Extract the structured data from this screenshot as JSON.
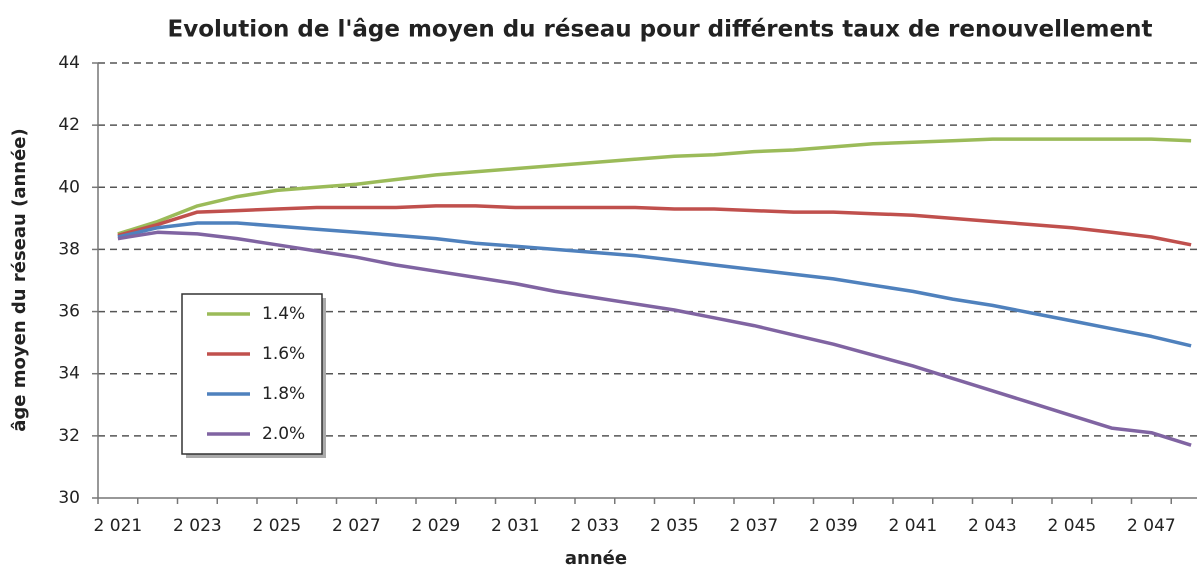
{
  "chart_data": {
    "type": "line",
    "title": "Evolution de l'âge moyen du réseau pour différents taux de renouvellement",
    "xlabel": "année",
    "ylabel": "âge moyen du réseau (année)",
    "categories": [
      "2 021",
      null,
      "2 023",
      null,
      "2 025",
      null,
      "2 027",
      null,
      "2 029",
      null,
      "2 031",
      null,
      "2 033",
      null,
      "2 035",
      null,
      "2 037",
      null,
      "2 039",
      null,
      "2 041",
      null,
      "2 043",
      null,
      "2 045",
      null,
      "2 047",
      null
    ],
    "series": [
      {
        "name": "1.4%",
        "color": "#9bbb59",
        "values": [
          38.5,
          38.9,
          39.4,
          39.7,
          39.9,
          40.0,
          40.1,
          40.25,
          40.4,
          40.5,
          40.6,
          40.7,
          40.8,
          40.9,
          41.0,
          41.05,
          41.15,
          41.2,
          41.3,
          41.4,
          41.45,
          41.5,
          41.55,
          41.55,
          41.55,
          41.55,
          41.55,
          41.5
        ]
      },
      {
        "name": "1.6%",
        "color": "#c0504d",
        "values": [
          38.45,
          38.8,
          39.2,
          39.25,
          39.3,
          39.35,
          39.35,
          39.35,
          39.4,
          39.4,
          39.35,
          39.35,
          39.35,
          39.35,
          39.3,
          39.3,
          39.25,
          39.2,
          39.2,
          39.15,
          39.1,
          39.0,
          38.9,
          38.8,
          38.7,
          38.55,
          38.4,
          38.15
        ]
      },
      {
        "name": "1.8%",
        "color": "#4f81bd",
        "values": [
          38.4,
          38.7,
          38.85,
          38.85,
          38.75,
          38.65,
          38.55,
          38.45,
          38.35,
          38.2,
          38.1,
          38.0,
          37.9,
          37.8,
          37.65,
          37.5,
          37.35,
          37.2,
          37.05,
          36.85,
          36.65,
          36.4,
          36.2,
          35.95,
          35.7,
          35.45,
          35.2,
          34.9
        ]
      },
      {
        "name": "2.0%",
        "color": "#8064a2",
        "values": [
          38.35,
          38.55,
          38.5,
          38.35,
          38.15,
          37.95,
          37.75,
          37.5,
          37.3,
          37.1,
          36.9,
          36.65,
          36.45,
          36.25,
          36.05,
          35.8,
          35.55,
          35.25,
          34.95,
          34.6,
          34.25,
          33.85,
          33.45,
          33.05,
          32.65,
          32.25,
          32.1,
          31.7
        ]
      }
    ],
    "ylim": [
      30,
      44
    ],
    "yticks": [
      30,
      32,
      34,
      36,
      38,
      40,
      42,
      44
    ],
    "grid": true
  }
}
